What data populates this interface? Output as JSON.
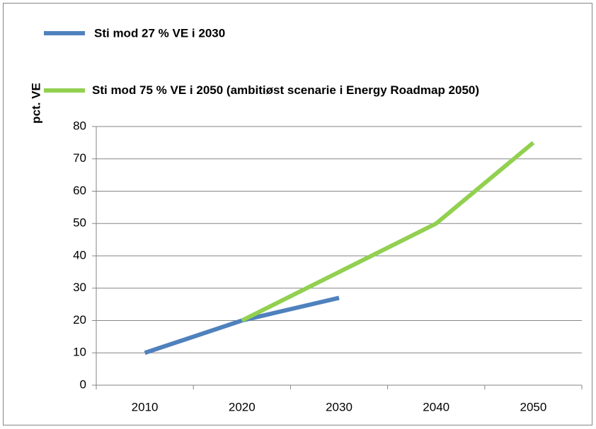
{
  "chart_data": {
    "type": "line",
    "y_label": "pct. VE",
    "categories": [
      "2010",
      "2020",
      "2030",
      "2040",
      "2050"
    ],
    "series": [
      {
        "name": "Sti mod 27 % VE i 2030",
        "color": "#4f81bd",
        "values": [
          10,
          20,
          27,
          null,
          null
        ]
      },
      {
        "name": "Sti mod 75 % VE i 2050 (ambitiøst scenarie i Energy Roadmap 2050)",
        "color": "#92d050",
        "values": [
          null,
          20,
          35,
          50,
          75
        ]
      }
    ],
    "ylim": [
      0,
      80
    ],
    "yticks": [
      0,
      10,
      20,
      30,
      40,
      50,
      60,
      70,
      80
    ],
    "grid": true,
    "legend": "top"
  }
}
